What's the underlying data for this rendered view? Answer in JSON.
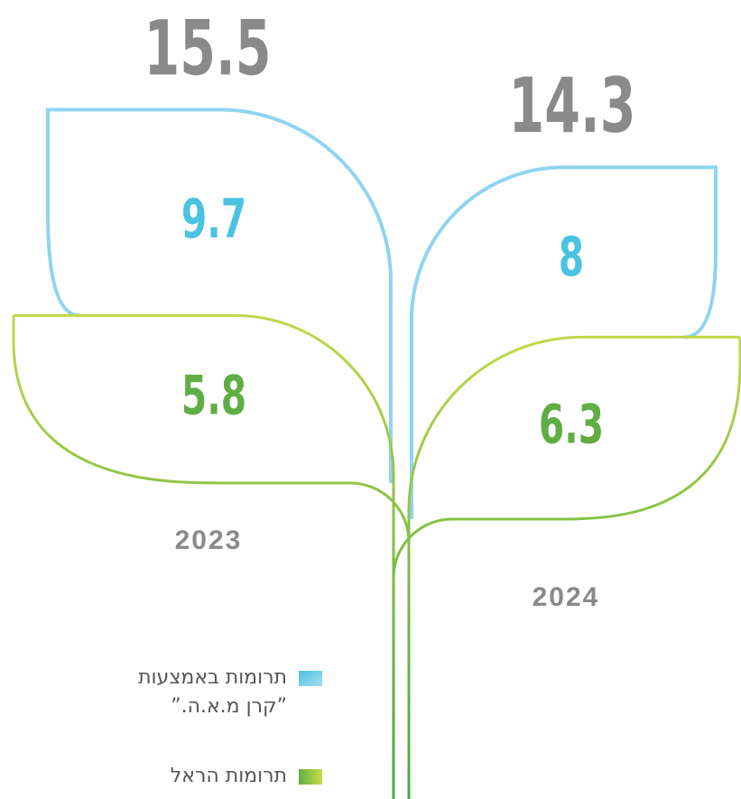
{
  "chart_data": {
    "type": "leaf",
    "categories": [
      "2023",
      "2024"
    ],
    "totals": [
      15.5,
      14.3
    ],
    "series": [
      {
        "name": "תרומות באמצעות ”קרן מ.א.ה.”",
        "color": "#4ac3e0",
        "values": [
          9.7,
          8
        ]
      },
      {
        "name": "תרומות הראל",
        "color": "#5fae45",
        "values": [
          5.8,
          6.3
        ]
      }
    ]
  }
}
